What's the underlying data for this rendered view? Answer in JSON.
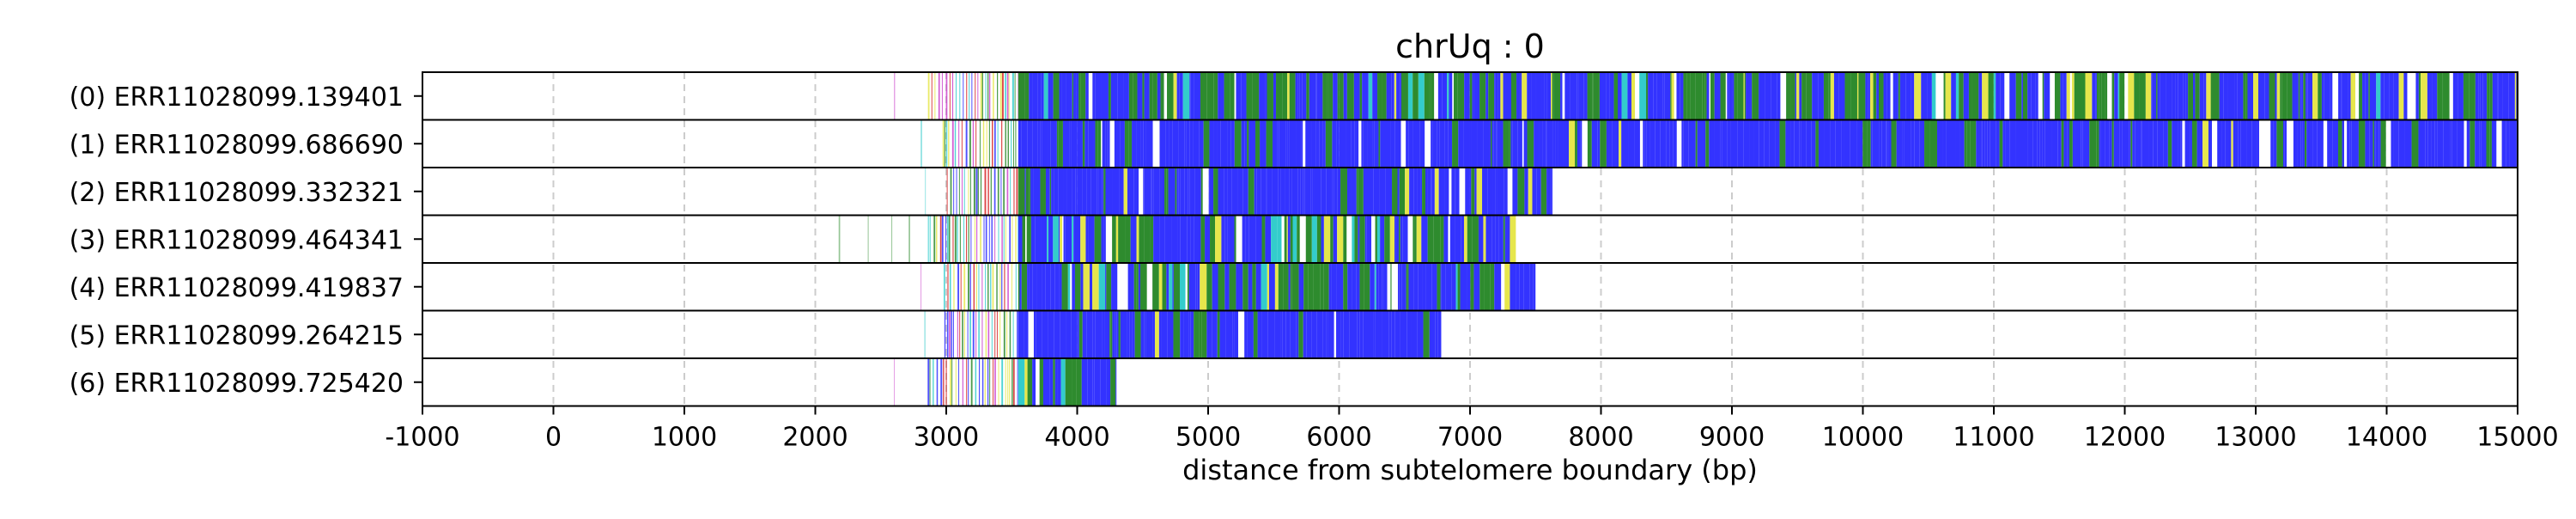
{
  "chart_data": {
    "type": "heatmap",
    "title": "chrUq : 0",
    "xlabel": "distance from subtelomere boundary (bp)",
    "ylabel": "",
    "xlim": [
      -1000,
      15000
    ],
    "x_ticks": [
      -1000,
      0,
      1000,
      2000,
      3000,
      4000,
      5000,
      6000,
      7000,
      8000,
      9000,
      10000,
      11000,
      12000,
      13000,
      14000,
      15000
    ],
    "x_tick_labels": [
      "-1000",
      "0",
      "1000",
      "2000",
      "3000",
      "4000",
      "5000",
      "6000",
      "7000",
      "8000",
      "9000",
      "10000",
      "11000",
      "12000",
      "13000",
      "14000",
      "15000"
    ],
    "grid": "vertical dashed",
    "colors": {
      "blue": "#3333ff",
      "green": "#2e8b2e",
      "yellow": "#e6e64c",
      "red": "#d62728",
      "magenta": "#cc44cc",
      "cyan": "#33cccc",
      "white": "#ffffff"
    },
    "rows": [
      {
        "label": "(0) ERR11028099.139401",
        "start": 2600,
        "end": 15000,
        "dense_from": 3550,
        "profile": "mixed"
      },
      {
        "label": "(1) ERR11028099.686690",
        "start": 2650,
        "end": 15000,
        "dense_from": 3550,
        "profile": "blue"
      },
      {
        "label": "(2) ERR11028099.332321",
        "start": 2100,
        "end": 7650,
        "dense_from": 3550,
        "profile": "blue"
      },
      {
        "label": "(3) ERR11028099.464341",
        "start": 2000,
        "end": 7350,
        "dense_from": 3550,
        "profile": "mixed"
      },
      {
        "label": "(4) ERR11028099.419837",
        "start": 2600,
        "end": 7500,
        "dense_from": 3550,
        "profile": "mixed"
      },
      {
        "label": "(5) ERR11028099.264215",
        "start": 2600,
        "end": 6780,
        "dense_from": 3550,
        "profile": "blue"
      },
      {
        "label": "(6) ERR11028099.725420",
        "start": 2600,
        "end": 4300,
        "dense_from": 3550,
        "profile": "mixed"
      }
    ]
  }
}
